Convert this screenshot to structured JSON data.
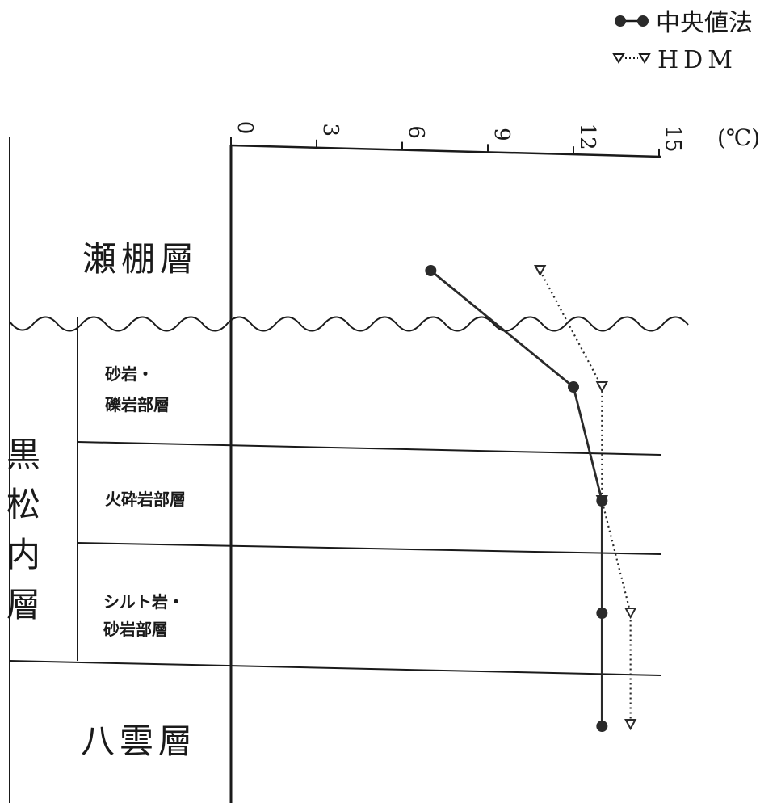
{
  "chart_data": {
    "type": "line",
    "xlabel_unit": "(℃)",
    "xticks": [
      0,
      3,
      6,
      9,
      12,
      15
    ],
    "xlim": [
      0,
      15
    ],
    "strata": {
      "setana": "瀬棚層",
      "kuromatsunai": "黒松内層",
      "sub_sandstone_1": "砂岩・",
      "sub_sandstone_2": "礫岩部層",
      "sub_pyroclastic": "火砕岩部層",
      "sub_siltstone_1": "シルト岩・",
      "sub_siltstone_2": "砂岩部層",
      "yakumo": "八雲層"
    },
    "legend": [
      {
        "name": "中央値法",
        "marker": "filled-circle",
        "line": "solid"
      },
      {
        "name": "HDM",
        "marker": "open-triangle-down",
        "line": "dotted"
      }
    ],
    "series": [
      {
        "name": "中央値法",
        "color": "#2a2a2a",
        "points": [
          {
            "stratum": "瀬棚層",
            "value": 7.0
          },
          {
            "stratum": "砂岩・礫岩部層",
            "value": 12.0
          },
          {
            "stratum": "火砕岩部層",
            "value": 13.0
          },
          {
            "stratum": "シルト岩・砂岩部層",
            "value": 13.0
          },
          {
            "stratum": "八雲層",
            "value": 13.0
          }
        ]
      },
      {
        "name": "HDM",
        "color": "#2a2a2a",
        "points": [
          {
            "stratum": "瀬棚層",
            "value": 11.0
          },
          {
            "stratum": "砂岩・礫岩部層",
            "value": 13.0
          },
          {
            "stratum": "火砕岩部層",
            "value": 13.0
          },
          {
            "stratum": "シルト岩・砂岩部層",
            "value": 14.0
          },
          {
            "stratum": "八雲層",
            "value": 14.0
          }
        ]
      }
    ]
  }
}
